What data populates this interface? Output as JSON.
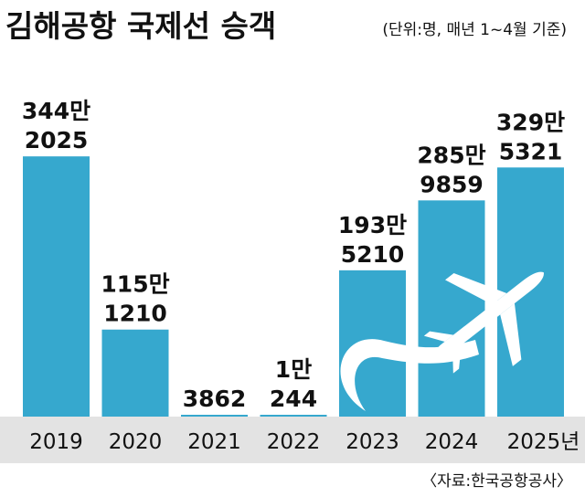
{
  "chart_data": {
    "type": "bar",
    "title": "김해공항 국제선 승객",
    "subtitle": "(단위:명, 매년 1~4월 기준)",
    "source": "〈자료:한국공항공사〉",
    "categories": [
      "2019",
      "2020",
      "2021",
      "2022",
      "2023",
      "2024",
      "2025년"
    ],
    "values": [
      3442025,
      1151210,
      3862,
      10244,
      1935210,
      2859859,
      3295321
    ],
    "data_labels": [
      [
        "344만",
        "2025"
      ],
      [
        "115만",
        "1210"
      ],
      [
        "",
        "3862"
      ],
      [
        "1만",
        "244"
      ],
      [
        "193만",
        "5210"
      ],
      [
        "285만",
        "9859"
      ],
      [
        "329만",
        "5321"
      ]
    ],
    "xlabel": "",
    "ylabel": "",
    "ylim": [
      0,
      4000000
    ],
    "grid": false,
    "legend": "none"
  },
  "colors": {
    "bar": "#36A8CE",
    "axis_band": "#E3E3E3",
    "text": "#111111",
    "airplane": "#FFFFFF"
  },
  "decoration": {
    "icon": "airplane-icon"
  }
}
